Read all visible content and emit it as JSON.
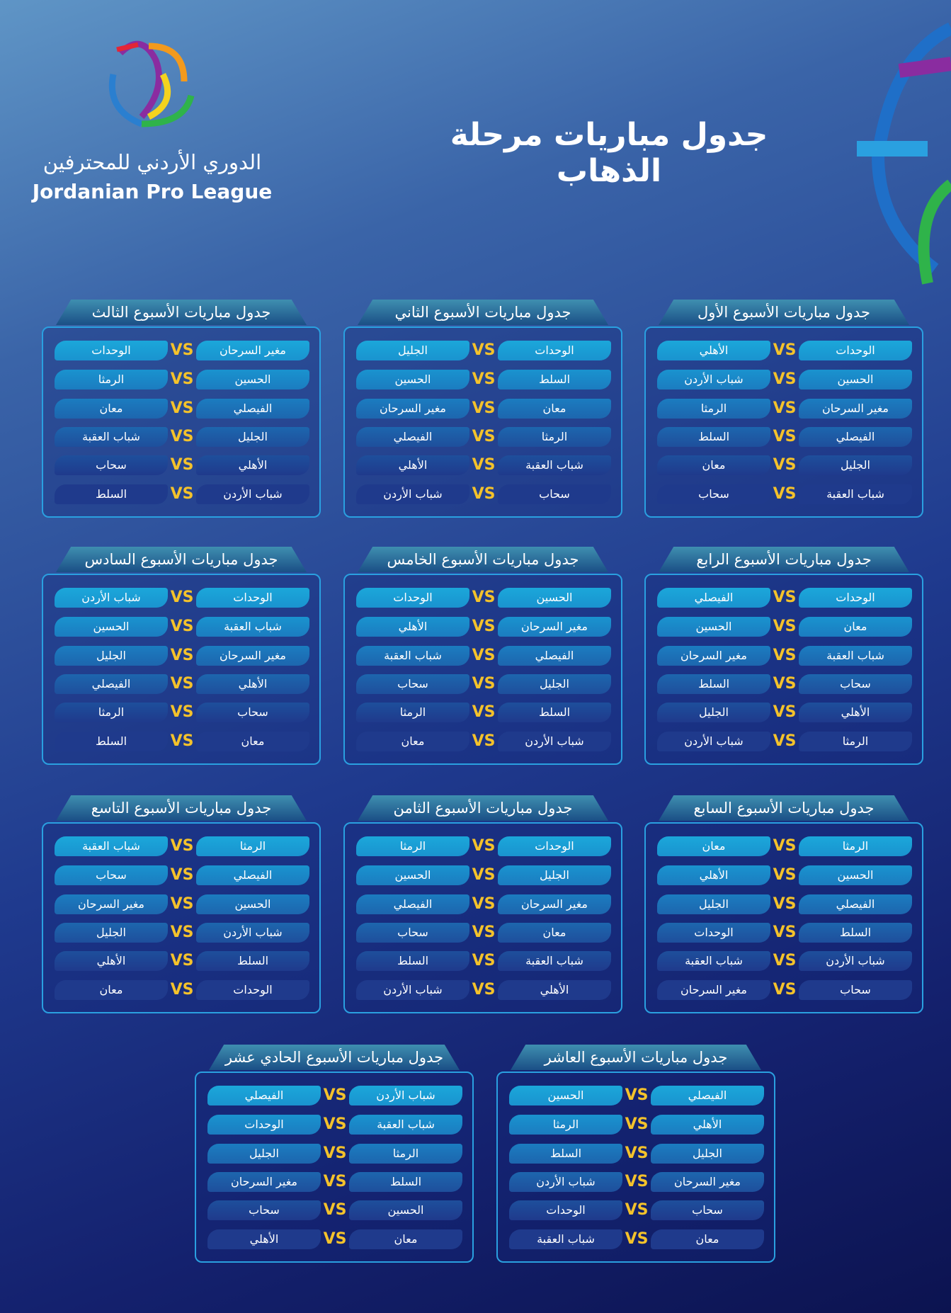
{
  "header": {
    "title": "جدول مباريات مرحلة الذهاب",
    "logo_arabic": "الدوري الأردني للمحترفين",
    "logo_english": "Jordanian Pro League"
  },
  "vs": "VS",
  "weeks": [
    {
      "title": "جدول مباريات الأسبوع الأول",
      "matches": [
        [
          "الوحدات",
          "الأهلي"
        ],
        [
          "الحسين",
          "شباب الأردن"
        ],
        [
          "مغير السرحان",
          "الرمثا"
        ],
        [
          "الفيصلي",
          "السلط"
        ],
        [
          "الجليل",
          "معان"
        ],
        [
          "شباب العقبة",
          "سحاب"
        ]
      ]
    },
    {
      "title": "جدول مباريات الأسبوع الثاني",
      "matches": [
        [
          "الوحدات",
          "الجليل"
        ],
        [
          "السلط",
          "الحسين"
        ],
        [
          "معان",
          "مغير السرحان"
        ],
        [
          "الرمثا",
          "الفيصلي"
        ],
        [
          "شباب العقبة",
          "الأهلي"
        ],
        [
          "سحاب",
          "شباب الأردن"
        ]
      ]
    },
    {
      "title": "جدول مباريات الأسبوع الثالث",
      "matches": [
        [
          "مغير السرحان",
          "الوحدات"
        ],
        [
          "الحسين",
          "الرمثا"
        ],
        [
          "الفيصلي",
          "معان"
        ],
        [
          "الجليل",
          "شباب العقبة"
        ],
        [
          "الأهلي",
          "سحاب"
        ],
        [
          "شباب الأردن",
          "السلط"
        ]
      ]
    },
    {
      "title": "جدول مباريات الأسبوع الرابع",
      "matches": [
        [
          "الوحدات",
          "الفيصلي"
        ],
        [
          "معان",
          "الحسين"
        ],
        [
          "شباب العقبة",
          "مغير السرحان"
        ],
        [
          "سحاب",
          "السلط"
        ],
        [
          "الأهلي",
          "الجليل"
        ],
        [
          "الرمثا",
          "شباب الأردن"
        ]
      ]
    },
    {
      "title": "جدول مباريات الأسبوع الخامس",
      "matches": [
        [
          "الحسين",
          "الوحدات"
        ],
        [
          "مغير السرحان",
          "الأهلي"
        ],
        [
          "الفيصلي",
          "شباب العقبة"
        ],
        [
          "الجليل",
          "سحاب"
        ],
        [
          "السلط",
          "الرمثا"
        ],
        [
          "شباب الأردن",
          "معان"
        ]
      ]
    },
    {
      "title": "جدول مباريات الأسبوع السادس",
      "matches": [
        [
          "الوحدات",
          "شباب الأردن"
        ],
        [
          "شباب العقبة",
          "الحسين"
        ],
        [
          "مغير السرحان",
          "الجليل"
        ],
        [
          "الأهلي",
          "الفيصلي"
        ],
        [
          "سحاب",
          "الرمثا"
        ],
        [
          "معان",
          "السلط"
        ]
      ]
    },
    {
      "title": "جدول مباريات الأسبوع السابع",
      "matches": [
        [
          "الرمثا",
          "معان"
        ],
        [
          "الحسين",
          "الأهلي"
        ],
        [
          "الفيصلي",
          "الجليل"
        ],
        [
          "السلط",
          "الوحدات"
        ],
        [
          "شباب الأردن",
          "شباب العقبة"
        ],
        [
          "سحاب",
          "مغير السرحان"
        ]
      ]
    },
    {
      "title": "جدول مباريات الأسبوع الثامن",
      "matches": [
        [
          "الوحدات",
          "الرمثا"
        ],
        [
          "الجليل",
          "الحسين"
        ],
        [
          "مغير السرحان",
          "الفيصلي"
        ],
        [
          "معان",
          "سحاب"
        ],
        [
          "شباب العقبة",
          "السلط"
        ],
        [
          "الأهلي",
          "شباب الأردن"
        ]
      ]
    },
    {
      "title": "جدول مباريات الأسبوع التاسع",
      "matches": [
        [
          "الرمثا",
          "شباب العقبة"
        ],
        [
          "الفيصلي",
          "سحاب"
        ],
        [
          "الحسين",
          "مغير السرحان"
        ],
        [
          "شباب الأردن",
          "الجليل"
        ],
        [
          "السلط",
          "الأهلي"
        ],
        [
          "الوحدات",
          "معان"
        ]
      ]
    },
    {
      "title": "جدول مباريات الأسبوع العاشر",
      "matches": [
        [
          "الفيصلي",
          "الحسين"
        ],
        [
          "الأهلي",
          "الرمثا"
        ],
        [
          "الجليل",
          "السلط"
        ],
        [
          "مغير السرحان",
          "شباب الأردن"
        ],
        [
          "سحاب",
          "الوحدات"
        ],
        [
          "معان",
          "شباب العقبة"
        ]
      ]
    },
    {
      "title": "جدول مباريات الأسبوع الحادي عشر",
      "matches": [
        [
          "شباب الأردن",
          "الفيصلي"
        ],
        [
          "شباب العقبة",
          "الوحدات"
        ],
        [
          "الرمثا",
          "الجليل"
        ],
        [
          "السلط",
          "مغير السرحان"
        ],
        [
          "الحسين",
          "سحاب"
        ],
        [
          "معان",
          "الأهلي"
        ]
      ]
    }
  ]
}
